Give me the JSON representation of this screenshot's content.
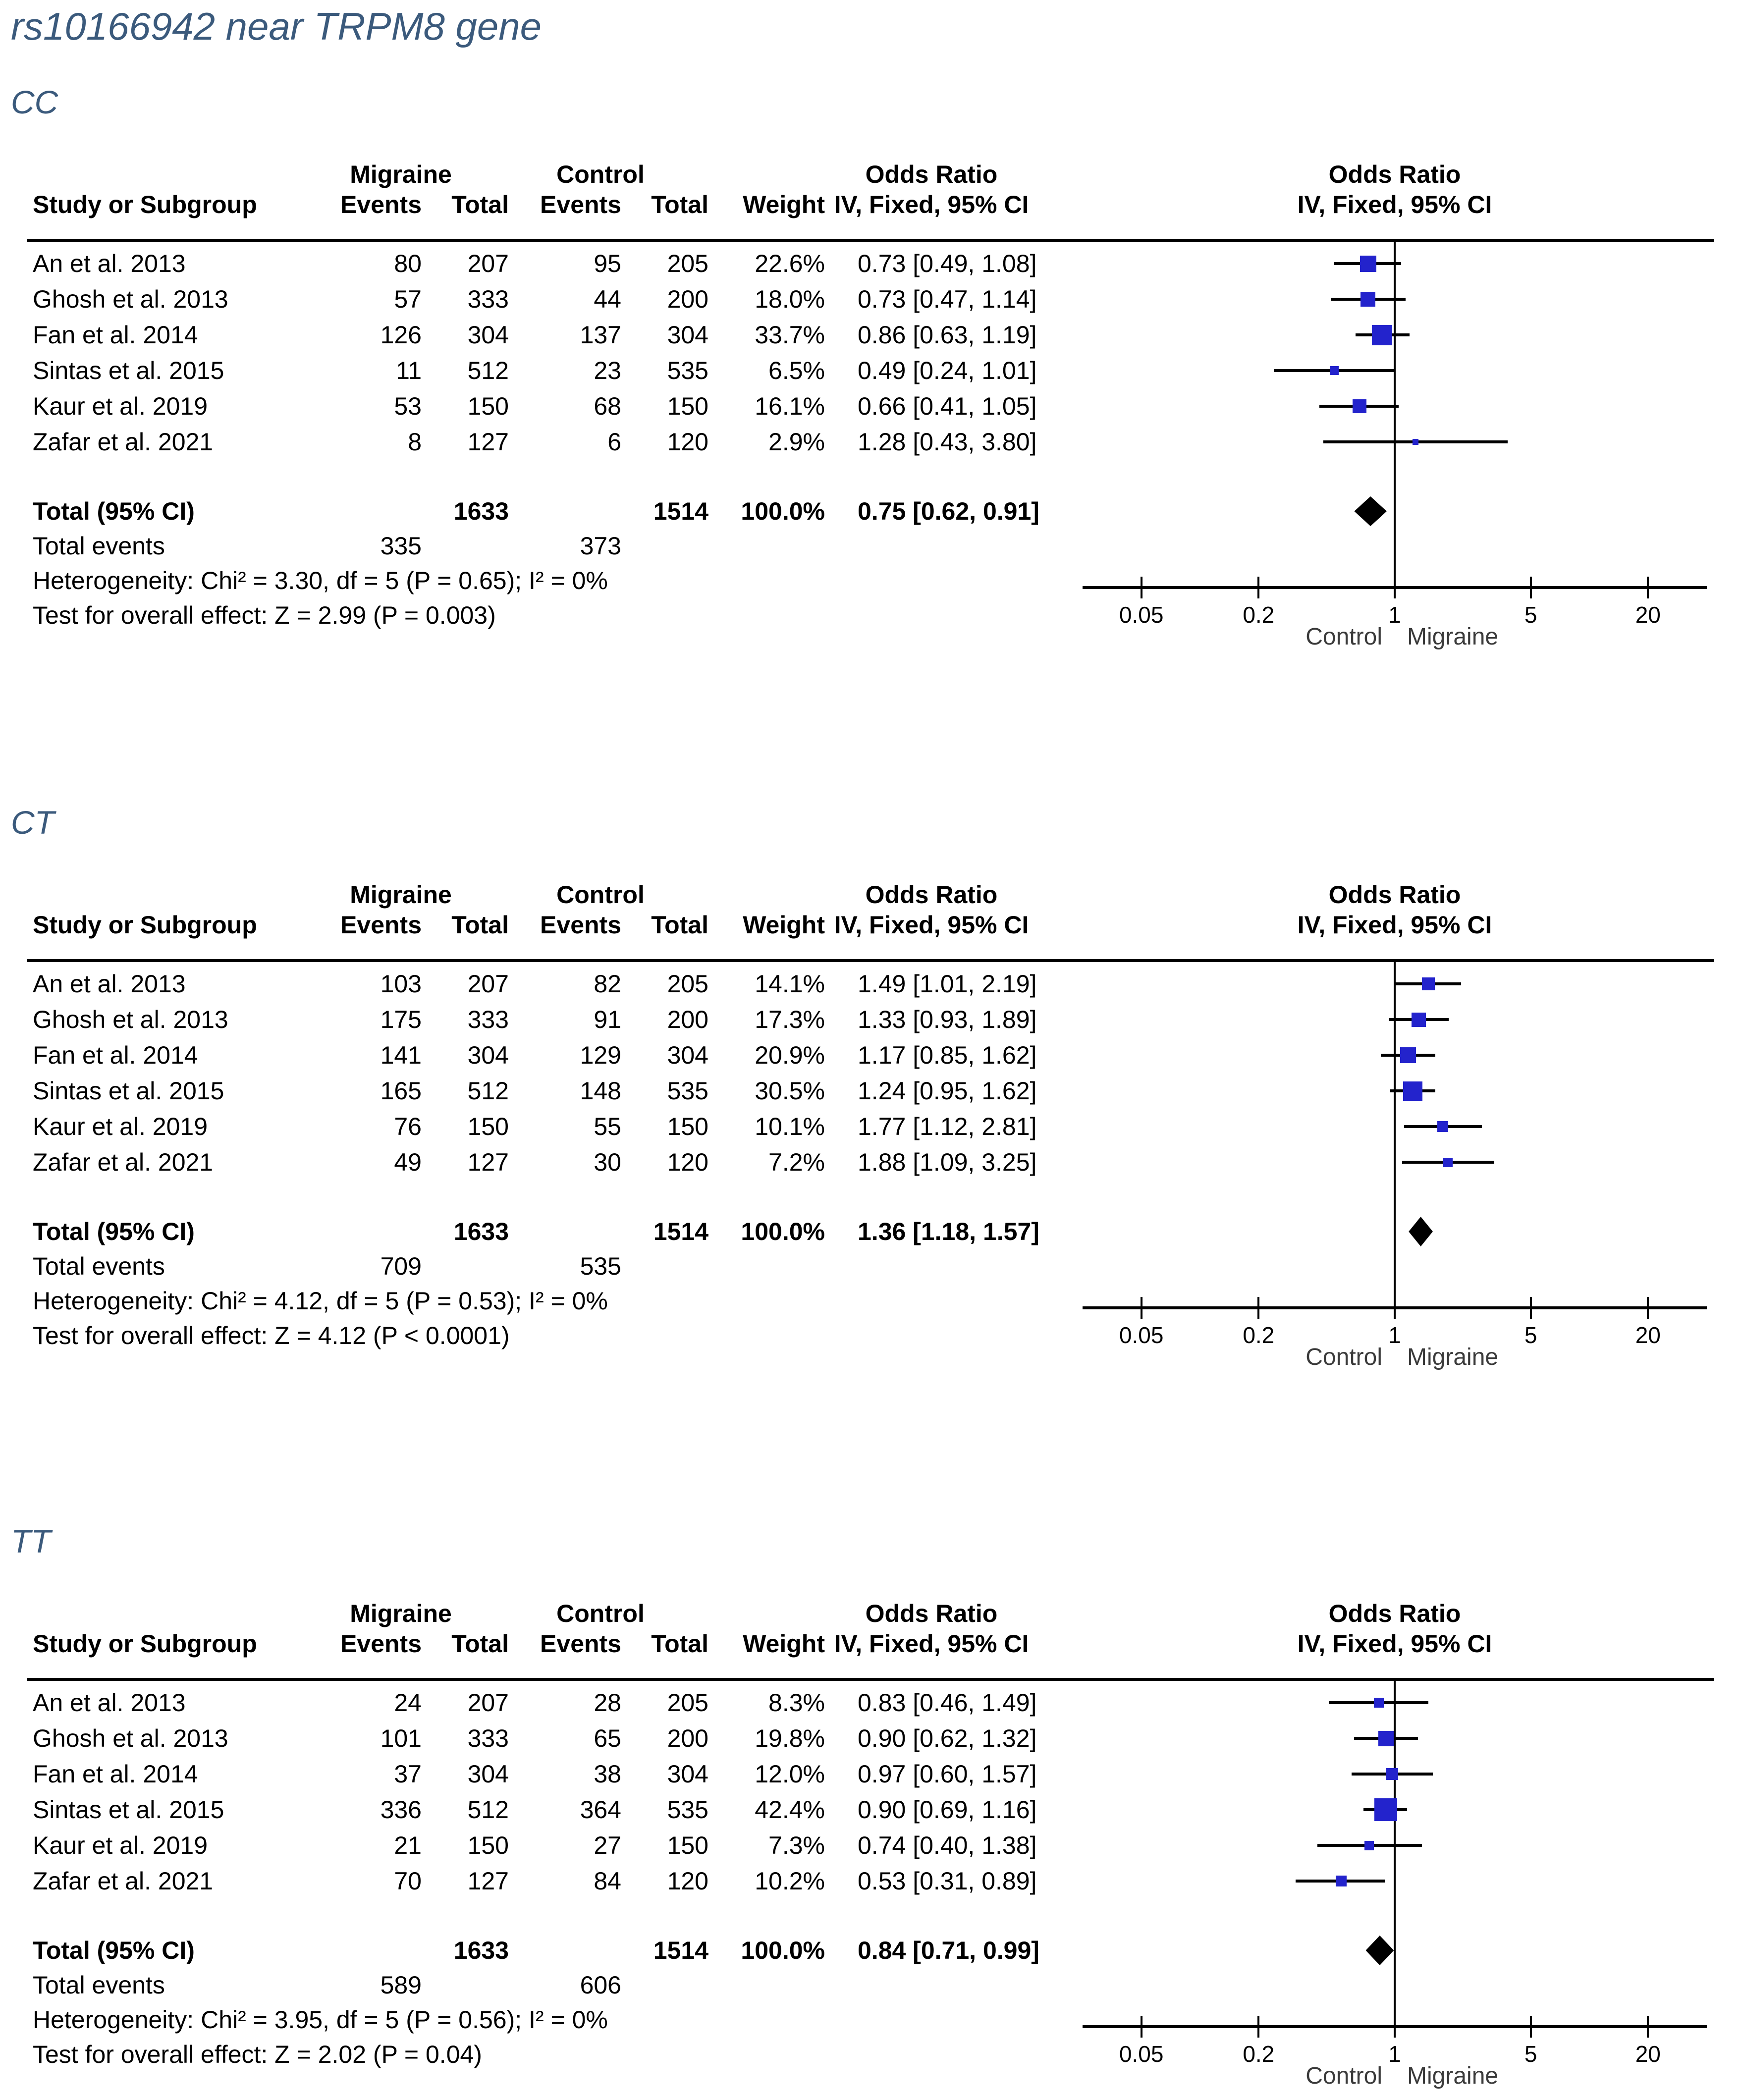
{
  "page_title": "rs10166942 near TRPM8 gene",
  "table_headers": {
    "group_migraine": "Migraine",
    "group_control": "Control",
    "col_study": "Study or Subgroup",
    "col_events": "Events",
    "col_total": "Total",
    "col_weight": "Weight",
    "col_odds_ratio": "Odds Ratio",
    "col_odds_ratio_sub": "IV, Fixed, 95% CI"
  },
  "axis": {
    "scale": "log",
    "ticks": [
      0.05,
      0.2,
      1,
      5,
      20
    ],
    "tick_labels": [
      "0.05",
      "0.2",
      "1",
      "5",
      "20"
    ],
    "left_label": "Control",
    "right_label": "Migraine"
  },
  "colors": {
    "marker_blue": "#2323cc",
    "diamond_black": "#000000",
    "heading_blue": "#3b5a7c"
  },
  "chart_data": [
    {
      "type": "forest-plot",
      "genotype": "CC",
      "studies": [
        {
          "study": "An et al. 2013",
          "migraine_events": 80,
          "migraine_total": 207,
          "control_events": 95,
          "control_total": 205,
          "weight": "22.6%",
          "weight_pct": 22.6,
          "or": 0.73,
          "ci_low": 0.49,
          "ci_high": 1.08,
          "or_text": "0.73 [0.49, 1.08]"
        },
        {
          "study": "Ghosh et al. 2013",
          "migraine_events": 57,
          "migraine_total": 333,
          "control_events": 44,
          "control_total": 200,
          "weight": "18.0%",
          "weight_pct": 18.0,
          "or": 0.73,
          "ci_low": 0.47,
          "ci_high": 1.14,
          "or_text": "0.73 [0.47, 1.14]"
        },
        {
          "study": "Fan et al. 2014",
          "migraine_events": 126,
          "migraine_total": 304,
          "control_events": 137,
          "control_total": 304,
          "weight": "33.7%",
          "weight_pct": 33.7,
          "or": 0.86,
          "ci_low": 0.63,
          "ci_high": 1.19,
          "or_text": "0.86 [0.63, 1.19]"
        },
        {
          "study": "Sintas et al. 2015",
          "migraine_events": 11,
          "migraine_total": 512,
          "control_events": 23,
          "control_total": 535,
          "weight": "6.5%",
          "weight_pct": 6.5,
          "or": 0.49,
          "ci_low": 0.24,
          "ci_high": 1.01,
          "or_text": "0.49 [0.24, 1.01]"
        },
        {
          "study": "Kaur et al. 2019",
          "migraine_events": 53,
          "migraine_total": 150,
          "control_events": 68,
          "control_total": 150,
          "weight": "16.1%",
          "weight_pct": 16.1,
          "or": 0.66,
          "ci_low": 0.41,
          "ci_high": 1.05,
          "or_text": "0.66 [0.41, 1.05]"
        },
        {
          "study": "Zafar et al. 2021",
          "migraine_events": 8,
          "migraine_total": 127,
          "control_events": 6,
          "control_total": 120,
          "weight": "2.9%",
          "weight_pct": 2.9,
          "or": 1.28,
          "ci_low": 0.43,
          "ci_high": 3.8,
          "or_text": "1.28 [0.43, 3.80]"
        }
      ],
      "total": {
        "label": "Total (95% CI)",
        "migraine_total": 1633,
        "control_total": 1514,
        "weight": "100.0%",
        "or": 0.75,
        "ci_low": 0.62,
        "ci_high": 0.91,
        "or_text": "0.75 [0.62, 0.91]"
      },
      "total_events_label": "Total events",
      "total_events_migraine": 335,
      "total_events_control": 373,
      "heterogeneity": "Heterogeneity: Chi² = 3.30, df = 5 (P = 0.65); I² = 0%",
      "overall_effect": "Test for overall effect: Z = 2.99 (P = 0.003)"
    },
    {
      "type": "forest-plot",
      "genotype": "CT",
      "studies": [
        {
          "study": "An et al. 2013",
          "migraine_events": 103,
          "migraine_total": 207,
          "control_events": 82,
          "control_total": 205,
          "weight": "14.1%",
          "weight_pct": 14.1,
          "or": 1.49,
          "ci_low": 1.01,
          "ci_high": 2.19,
          "or_text": "1.49 [1.01, 2.19]"
        },
        {
          "study": "Ghosh et al. 2013",
          "migraine_events": 175,
          "migraine_total": 333,
          "control_events": 91,
          "control_total": 200,
          "weight": "17.3%",
          "weight_pct": 17.3,
          "or": 1.33,
          "ci_low": 0.93,
          "ci_high": 1.89,
          "or_text": "1.33 [0.93, 1.89]"
        },
        {
          "study": "Fan et al. 2014",
          "migraine_events": 141,
          "migraine_total": 304,
          "control_events": 129,
          "control_total": 304,
          "weight": "20.9%",
          "weight_pct": 20.9,
          "or": 1.17,
          "ci_low": 0.85,
          "ci_high": 1.62,
          "or_text": "1.17 [0.85, 1.62]"
        },
        {
          "study": "Sintas et al. 2015",
          "migraine_events": 165,
          "migraine_total": 512,
          "control_events": 148,
          "control_total": 535,
          "weight": "30.5%",
          "weight_pct": 30.5,
          "or": 1.24,
          "ci_low": 0.95,
          "ci_high": 1.62,
          "or_text": "1.24 [0.95, 1.62]"
        },
        {
          "study": "Kaur et al. 2019",
          "migraine_events": 76,
          "migraine_total": 150,
          "control_events": 55,
          "control_total": 150,
          "weight": "10.1%",
          "weight_pct": 10.1,
          "or": 1.77,
          "ci_low": 1.12,
          "ci_high": 2.81,
          "or_text": "1.77 [1.12, 2.81]"
        },
        {
          "study": "Zafar et al. 2021",
          "migraine_events": 49,
          "migraine_total": 127,
          "control_events": 30,
          "control_total": 120,
          "weight": "7.2%",
          "weight_pct": 7.2,
          "or": 1.88,
          "ci_low": 1.09,
          "ci_high": 3.25,
          "or_text": "1.88 [1.09, 3.25]"
        }
      ],
      "total": {
        "label": "Total (95% CI)",
        "migraine_total": 1633,
        "control_total": 1514,
        "weight": "100.0%",
        "or": 1.36,
        "ci_low": 1.18,
        "ci_high": 1.57,
        "or_text": "1.36 [1.18, 1.57]"
      },
      "total_events_label": "Total events",
      "total_events_migraine": 709,
      "total_events_control": 535,
      "heterogeneity": "Heterogeneity: Chi² = 4.12, df = 5 (P = 0.53); I² = 0%",
      "overall_effect": "Test for overall effect: Z = 4.12 (P < 0.0001)"
    },
    {
      "type": "forest-plot",
      "genotype": "TT",
      "studies": [
        {
          "study": "An et al. 2013",
          "migraine_events": 24,
          "migraine_total": 207,
          "control_events": 28,
          "control_total": 205,
          "weight": "8.3%",
          "weight_pct": 8.3,
          "or": 0.83,
          "ci_low": 0.46,
          "ci_high": 1.49,
          "or_text": "0.83 [0.46, 1.49]"
        },
        {
          "study": "Ghosh et al. 2013",
          "migraine_events": 101,
          "migraine_total": 333,
          "control_events": 65,
          "control_total": 200,
          "weight": "19.8%",
          "weight_pct": 19.8,
          "or": 0.9,
          "ci_low": 0.62,
          "ci_high": 1.32,
          "or_text": "0.90 [0.62, 1.32]"
        },
        {
          "study": "Fan et al. 2014",
          "migraine_events": 37,
          "migraine_total": 304,
          "control_events": 38,
          "control_total": 304,
          "weight": "12.0%",
          "weight_pct": 12.0,
          "or": 0.97,
          "ci_low": 0.6,
          "ci_high": 1.57,
          "or_text": "0.97 [0.60, 1.57]"
        },
        {
          "study": "Sintas et al. 2015",
          "migraine_events": 336,
          "migraine_total": 512,
          "control_events": 364,
          "control_total": 535,
          "weight": "42.4%",
          "weight_pct": 42.4,
          "or": 0.9,
          "ci_low": 0.69,
          "ci_high": 1.16,
          "or_text": "0.90 [0.69, 1.16]"
        },
        {
          "study": "Kaur et al. 2019",
          "migraine_events": 21,
          "migraine_total": 150,
          "control_events": 27,
          "control_total": 150,
          "weight": "7.3%",
          "weight_pct": 7.3,
          "or": 0.74,
          "ci_low": 0.4,
          "ci_high": 1.38,
          "or_text": "0.74 [0.40, 1.38]"
        },
        {
          "study": "Zafar et al. 2021",
          "migraine_events": 70,
          "migraine_total": 127,
          "control_events": 84,
          "control_total": 120,
          "weight": "10.2%",
          "weight_pct": 10.2,
          "or": 0.53,
          "ci_low": 0.31,
          "ci_high": 0.89,
          "or_text": "0.53 [0.31, 0.89]"
        }
      ],
      "total": {
        "label": "Total (95% CI)",
        "migraine_total": 1633,
        "control_total": 1514,
        "weight": "100.0%",
        "or": 0.84,
        "ci_low": 0.71,
        "ci_high": 0.99,
        "or_text": "0.84 [0.71, 0.99]"
      },
      "total_events_label": "Total events",
      "total_events_migraine": 589,
      "total_events_control": 606,
      "heterogeneity": "Heterogeneity: Chi² = 3.95, df = 5 (P = 0.56); I² = 0%",
      "overall_effect": "Test for overall effect: Z = 2.02 (P = 0.04)"
    }
  ]
}
